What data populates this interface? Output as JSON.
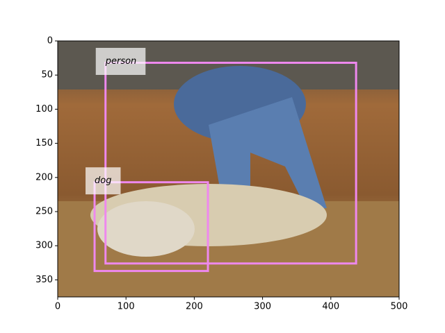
{
  "chart_data": {
    "type": "detection",
    "xlim": [
      0,
      500
    ],
    "ylim": [
      375,
      0
    ],
    "xticks": [
      0,
      100,
      200,
      300,
      400,
      500
    ],
    "yticks": [
      0,
      50,
      100,
      150,
      200,
      250,
      300,
      350
    ],
    "color": "#ee88ee",
    "boxes": [
      {
        "label": "person",
        "x0": 70,
        "y0": 32,
        "x1": 437,
        "y1": 326
      },
      {
        "label": "dog",
        "x0": 54,
        "y0": 207,
        "x1": 220,
        "y1": 337
      }
    ]
  }
}
